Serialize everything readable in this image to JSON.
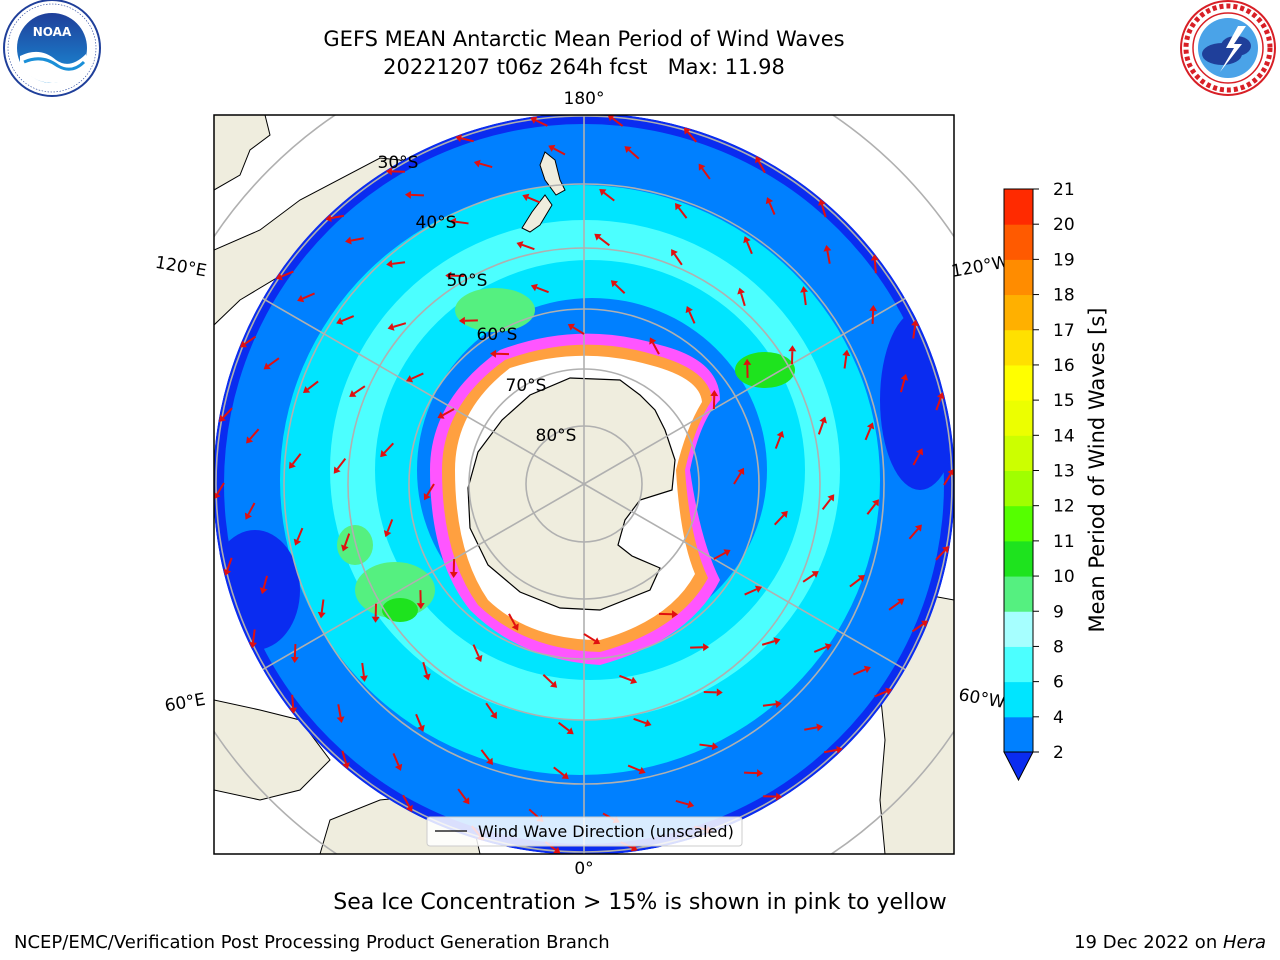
{
  "header": {
    "title_line1": "GEFS MEAN Antarctic Mean Period of Wind Waves",
    "title_line2": "20221207 t06z 264h fcst   Max: 11.98"
  },
  "logos": {
    "left": {
      "icon": "noaa-logo",
      "text": "NOAA",
      "ring_text": "NATIONAL OCEANIC AND ATMOSPHERIC ADMINISTRATION · U.S. DEPARTMENT OF COMMERCE"
    },
    "right": {
      "icon": "nws-logo",
      "ring_text": "NATIONAL WEATHER SERVICE"
    }
  },
  "map": {
    "projection": "south-polar-stereographic",
    "lon_labels": {
      "top": "180°",
      "bottom": "0°",
      "left_upper": "120°E",
      "left_lower": "60°E",
      "right_upper": "120°W",
      "right_lower": "60°W"
    },
    "lat_labels": [
      "30°S",
      "40°S",
      "50°S",
      "60°S",
      "70°S",
      "80°S"
    ],
    "legend": "Wind Wave Direction (unscaled)",
    "arrow_color": "#e01010",
    "land_color": "#efedde",
    "sea_ice_colors": [
      "#ff55ff",
      "#ffa040",
      "#ffd060"
    ]
  },
  "colorbar": {
    "label": "Mean Period of Wind Waves [s]",
    "ticks": [
      "2",
      "4",
      "6",
      "8",
      "9",
      "10",
      "11",
      "12",
      "13",
      "14",
      "15",
      "16",
      "17",
      "18",
      "19",
      "20",
      "21"
    ],
    "colors": [
      "#0a2cf0",
      "#0080ff",
      "#00e5ff",
      "#4cffff",
      "#a6ffff",
      "#55f080",
      "#1ee31e",
      "#55ff00",
      "#a0ff00",
      "#ccff00",
      "#ecff00",
      "#ffff00",
      "#ffe000",
      "#ffb000",
      "#ff8c00",
      "#ff5a00",
      "#ff2a00",
      "#ff0000"
    ],
    "extend": "min"
  },
  "chart_data": {
    "type": "heatmap",
    "title": "GEFS MEAN Antarctic Mean Period of Wind Waves",
    "subtitle": "20221207 t06z 264h fcst   Max: 11.98",
    "variable": "Mean Period of Wind Waves [s]",
    "max": 11.98,
    "colorbar_range": [
      2,
      21
    ],
    "colorbar_levels": [
      2,
      4,
      6,
      8,
      9,
      10,
      11,
      12,
      13,
      14,
      15,
      16,
      17,
      18,
      19,
      20,
      21
    ]
  },
  "caption": "Sea Ice Concentration > 15% is shown in pink to yellow",
  "footer": {
    "left": "NCEP/EMC/Verification Post Processing Product Generation Branch",
    "right_prefix": "19 Dec 2022 on ",
    "right_italic": "Hera"
  }
}
